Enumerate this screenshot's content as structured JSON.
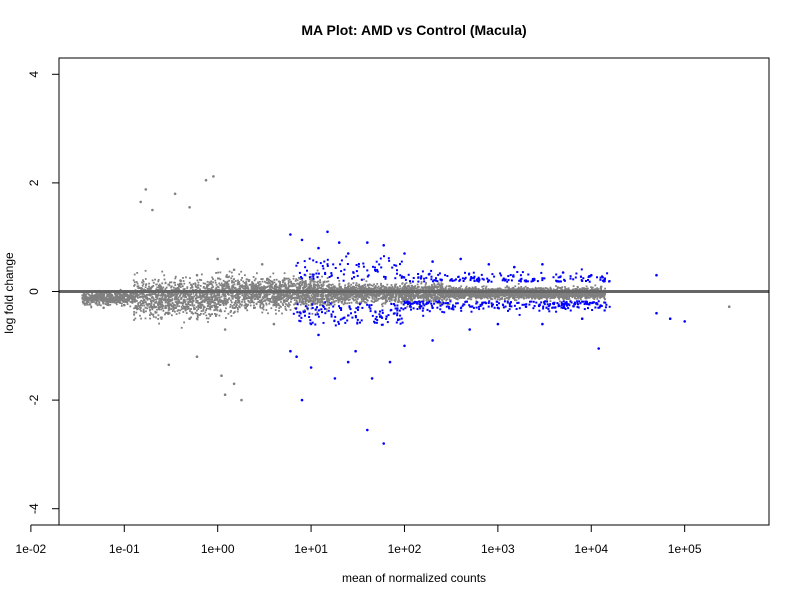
{
  "chart_data": {
    "type": "scatter",
    "title": "MA Plot: AMD vs Control (Macula)",
    "xlabel": "mean of normalized counts",
    "ylabel": "log fold change",
    "x_scale": "log10",
    "xlim": [
      0.02,
      800000
    ],
    "ylim": [
      -4.3,
      4.3
    ],
    "x_ticks": [
      {
        "value": 0.01,
        "label": "1e-02"
      },
      {
        "value": 0.1,
        "label": "1e-01"
      },
      {
        "value": 1,
        "label": "1e+00"
      },
      {
        "value": 10,
        "label": "1e+01"
      },
      {
        "value": 100,
        "label": "1e+02"
      },
      {
        "value": 1000,
        "label": "1e+03"
      },
      {
        "value": 10000,
        "label": "1e+04"
      },
      {
        "value": 100000,
        "label": "1e+05"
      }
    ],
    "y_ticks": [
      {
        "value": -4,
        "label": "-4"
      },
      {
        "value": -2,
        "label": "-2"
      },
      {
        "value": 0,
        "label": "0"
      },
      {
        "value": 2,
        "label": "2"
      },
      {
        "value": 4,
        "label": "4"
      }
    ],
    "reference_line": {
      "y": 0,
      "color": "#666666"
    },
    "grid": false,
    "legend": "none",
    "series": [
      {
        "color": "#808080",
        "points": [
          [
            0.04,
            -0.2
          ],
          [
            0.05,
            -0.22
          ],
          [
            0.06,
            -0.3
          ],
          [
            0.08,
            -0.15
          ],
          [
            0.1,
            -0.25
          ],
          [
            0.15,
            -0.1
          ],
          [
            0.2,
            -0.3
          ],
          [
            0.25,
            0.05
          ],
          [
            0.3,
            -0.4
          ],
          [
            0.4,
            0.2
          ],
          [
            0.5,
            -0.5
          ],
          [
            0.6,
            0.3
          ],
          [
            0.8,
            -0.2
          ],
          [
            1.0,
            0.6
          ],
          [
            1.2,
            -0.7
          ],
          [
            1.5,
            0.4
          ],
          [
            2.0,
            -0.3
          ],
          [
            3.0,
            0.5
          ],
          [
            4.0,
            -0.6
          ],
          [
            5.0,
            0.2
          ],
          [
            8.0,
            -0.2
          ],
          [
            15.0,
            0.1
          ],
          [
            30.0,
            -0.1
          ],
          [
            100.0,
            0.1
          ],
          [
            300.0,
            -0.05
          ],
          [
            1000.0,
            0.05
          ],
          [
            3000.0,
            -0.04
          ],
          [
            10000.0,
            0.02
          ],
          [
            0.17,
            1.88
          ],
          [
            0.35,
            1.8
          ],
          [
            0.75,
            2.05
          ],
          [
            0.9,
            2.12
          ],
          [
            0.6,
            -1.2
          ],
          [
            1.1,
            -1.55
          ],
          [
            1.5,
            -1.7
          ],
          [
            1.8,
            -2.0
          ],
          [
            1.2,
            -1.9
          ],
          [
            0.3,
            -1.35
          ],
          [
            0.15,
            1.65
          ],
          [
            0.2,
            1.5
          ],
          [
            0.5,
            1.55
          ],
          [
            300000.0,
            -0.28
          ]
        ]
      },
      {
        "color": "#0000ff",
        "points": [
          [
            6.0,
            1.05
          ],
          [
            8.0,
            0.95
          ],
          [
            12.0,
            0.8
          ],
          [
            15.0,
            1.1
          ],
          [
            20.0,
            0.9
          ],
          [
            25.0,
            0.7
          ],
          [
            40.0,
            0.9
          ],
          [
            60.0,
            0.85
          ],
          [
            100.0,
            0.7
          ],
          [
            200.0,
            0.55
          ],
          [
            400.0,
            0.6
          ],
          [
            800.0,
            0.5
          ],
          [
            1500.0,
            0.45
          ],
          [
            3000.0,
            0.5
          ],
          [
            5000.0,
            0.35
          ],
          [
            10000.0,
            0.3
          ],
          [
            50000.0,
            0.3
          ],
          [
            6.0,
            -1.1
          ],
          [
            7.0,
            -1.2
          ],
          [
            8.0,
            -2.0
          ],
          [
            10.0,
            -1.4
          ],
          [
            12.0,
            -0.8
          ],
          [
            18.0,
            -1.6
          ],
          [
            25.0,
            -1.3
          ],
          [
            30.0,
            -1.1
          ],
          [
            40.0,
            -2.55
          ],
          [
            45.0,
            -1.6
          ],
          [
            60.0,
            -2.8
          ],
          [
            70.0,
            -1.3
          ],
          [
            100.0,
            -1.0
          ],
          [
            200.0,
            -0.9
          ],
          [
            500.0,
            -0.7
          ],
          [
            1000.0,
            -0.6
          ],
          [
            3000.0,
            -0.6
          ],
          [
            8000.0,
            -0.5
          ],
          [
            12000.0,
            -1.05
          ],
          [
            50000.0,
            -0.4
          ],
          [
            70000.0,
            -0.5
          ],
          [
            100000.0,
            -0.55
          ],
          [
            200.0,
            -0.3
          ],
          [
            1000.0,
            -0.3
          ],
          [
            2000.0,
            -0.28
          ],
          [
            5000.0,
            -0.3
          ]
        ]
      }
    ]
  }
}
